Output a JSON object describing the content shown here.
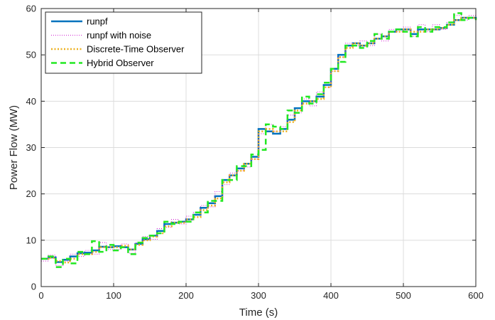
{
  "chart_data": {
    "type": "line",
    "xlabel": "Time (s)",
    "ylabel": "Power Flow (MW)",
    "xlim": [
      0,
      600
    ],
    "ylim": [
      0,
      60
    ],
    "xticks": [
      "0",
      "100",
      "200",
      "300",
      "400",
      "500",
      "600"
    ],
    "yticks": [
      "0",
      "10",
      "20",
      "30",
      "40",
      "50",
      "60"
    ],
    "grid": true,
    "legend_position": "top-left",
    "series": [
      {
        "name": "runpf",
        "color": "#0072BD",
        "style": "solid-step",
        "x": [
          0,
          10,
          20,
          30,
          40,
          50,
          60,
          70,
          80,
          90,
          100,
          110,
          120,
          130,
          140,
          150,
          160,
          170,
          180,
          190,
          200,
          210,
          220,
          230,
          240,
          250,
          260,
          270,
          280,
          290,
          300,
          310,
          320,
          330,
          340,
          350,
          360,
          370,
          380,
          390,
          400,
          410,
          420,
          430,
          440,
          450,
          460,
          470,
          480,
          490,
          500,
          510,
          520,
          530,
          540,
          550,
          560,
          570,
          580,
          590,
          600
        ],
        "values": [
          6.0,
          6.3,
          5.3,
          5.8,
          6.5,
          7.2,
          7.3,
          7.8,
          8.6,
          8.5,
          8.7,
          8.5,
          8.0,
          9.2,
          10.2,
          11.0,
          12.0,
          13.5,
          13.8,
          14.0,
          14.5,
          15.5,
          17.0,
          18.0,
          19.5,
          23.0,
          24.0,
          25.5,
          26.5,
          28.0,
          34.0,
          33.5,
          33.0,
          34.0,
          36.0,
          38.5,
          40.0,
          40.0,
          41.0,
          43.5,
          47.0,
          50.0,
          52.0,
          52.5,
          52.0,
          52.5,
          53.5,
          54.0,
          55.0,
          55.5,
          55.5,
          54.5,
          55.5,
          55.5,
          55.5,
          55.8,
          56.5,
          57.5,
          58.0,
          58.0,
          57.8
        ]
      },
      {
        "name": "runpf with noise",
        "color": "#D020D0",
        "style": "dotted-thin",
        "x": [
          0,
          10,
          20,
          30,
          40,
          50,
          60,
          70,
          80,
          90,
          100,
          110,
          120,
          130,
          140,
          150,
          160,
          170,
          180,
          190,
          200,
          210,
          220,
          230,
          240,
          250,
          260,
          270,
          280,
          290,
          300,
          310,
          320,
          330,
          340,
          350,
          360,
          370,
          380,
          390,
          400,
          410,
          420,
          430,
          440,
          450,
          460,
          470,
          480,
          490,
          500,
          510,
          520,
          530,
          540,
          550,
          560,
          570,
          580,
          590,
          600
        ],
        "values": [
          5.5,
          6.8,
          4.5,
          5.5,
          7.0,
          6.5,
          7.8,
          7.0,
          9.5,
          8.0,
          8.0,
          9.2,
          7.2,
          9.5,
          10.8,
          10.2,
          12.5,
          12.8,
          14.5,
          13.5,
          15.2,
          16.0,
          17.5,
          17.2,
          20.5,
          22.0,
          24.5,
          25.0,
          25.8,
          27.5,
          33.0,
          35.0,
          33.5,
          34.5,
          37.0,
          37.5,
          40.5,
          39.0,
          42.0,
          43.0,
          46.5,
          49.5,
          52.5,
          52.0,
          53.0,
          52.0,
          54.5,
          53.0,
          55.5,
          55.0,
          56.0,
          54.0,
          56.5,
          55.0,
          56.5,
          55.5,
          57.0,
          58.5,
          57.5,
          58.5,
          57.5
        ]
      },
      {
        "name": "Discrete-Time Observer",
        "color": "#EDB120",
        "style": "dotted-thick",
        "x": [
          0,
          10,
          20,
          30,
          40,
          50,
          60,
          70,
          80,
          90,
          100,
          110,
          120,
          130,
          140,
          150,
          160,
          170,
          180,
          190,
          200,
          210,
          220,
          230,
          240,
          250,
          260,
          270,
          280,
          290,
          300,
          310,
          320,
          330,
          340,
          350,
          360,
          370,
          380,
          390,
          400,
          410,
          420,
          430,
          440,
          450,
          460,
          470,
          480,
          490,
          500,
          510,
          520,
          530,
          540,
          550,
          560,
          570,
          580,
          590,
          600
        ],
        "values": [
          6.0,
          6.2,
          5.5,
          5.2,
          6.0,
          7.0,
          7.0,
          7.5,
          8.5,
          8.5,
          8.5,
          8.8,
          8.0,
          9.0,
          10.0,
          10.8,
          11.5,
          13.0,
          13.8,
          13.8,
          14.5,
          15.0,
          16.5,
          17.5,
          19.0,
          22.5,
          24.0,
          25.0,
          26.5,
          27.5,
          33.5,
          34.0,
          33.5,
          33.5,
          35.5,
          38.0,
          39.5,
          40.0,
          40.5,
          43.0,
          46.5,
          49.5,
          51.5,
          52.5,
          52.0,
          52.5,
          53.5,
          54.0,
          55.0,
          55.0,
          55.5,
          55.0,
          55.0,
          55.5,
          55.5,
          55.8,
          56.5,
          57.5,
          58.0,
          58.0,
          57.8
        ]
      },
      {
        "name": "Hybrid Observer",
        "color": "#22E822",
        "style": "dashed",
        "x": [
          0,
          10,
          20,
          30,
          40,
          50,
          60,
          70,
          80,
          90,
          100,
          110,
          120,
          130,
          140,
          150,
          160,
          170,
          180,
          190,
          200,
          210,
          220,
          230,
          240,
          250,
          260,
          270,
          280,
          290,
          300,
          310,
          320,
          330,
          340,
          350,
          360,
          370,
          380,
          390,
          400,
          410,
          420,
          430,
          440,
          450,
          460,
          470,
          480,
          490,
          500,
          510,
          520,
          530,
          540,
          550,
          560,
          570,
          580,
          590,
          600
        ],
        "values": [
          6.0,
          6.5,
          4.2,
          6.0,
          5.0,
          7.5,
          7.0,
          9.8,
          7.5,
          9.0,
          7.8,
          8.5,
          7.0,
          9.5,
          10.5,
          11.0,
          11.5,
          14.0,
          13.5,
          14.0,
          14.0,
          16.0,
          16.0,
          18.5,
          18.5,
          23.0,
          23.0,
          26.0,
          26.0,
          28.5,
          29.5,
          35.0,
          34.5,
          34.0,
          38.0,
          37.5,
          41.0,
          39.5,
          41.5,
          44.0,
          47.0,
          48.5,
          52.0,
          52.0,
          51.5,
          53.0,
          54.5,
          53.5,
          55.0,
          55.5,
          55.0,
          54.0,
          56.0,
          55.0,
          56.0,
          56.0,
          57.0,
          59.0,
          57.5,
          58.0,
          57.5
        ]
      }
    ]
  }
}
